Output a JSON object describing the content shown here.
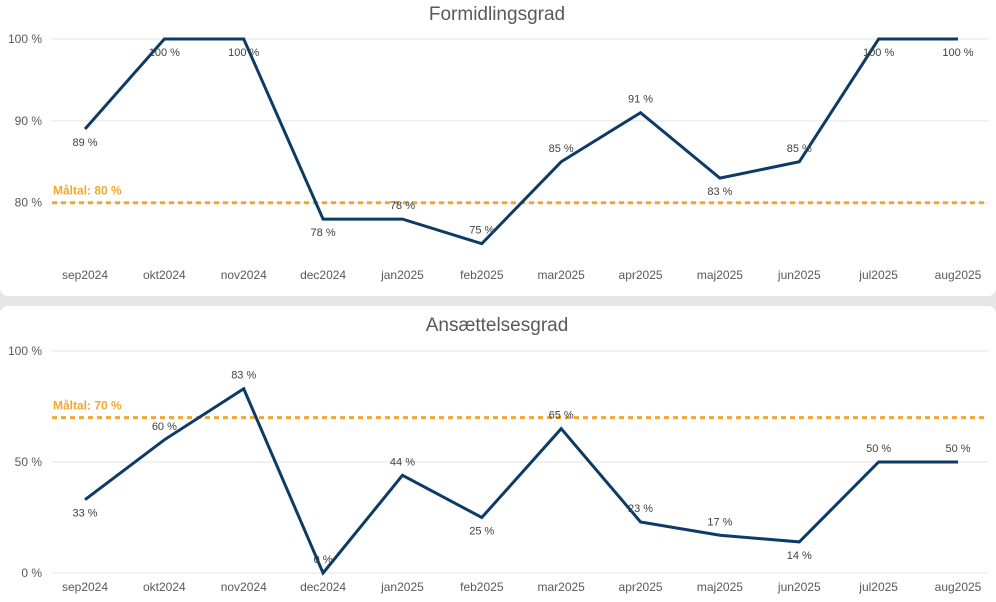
{
  "chart_data": [
    {
      "type": "line",
      "title": "Formidlingsgrad",
      "categories": [
        "sep2024",
        "okt2024",
        "nov2024",
        "dec2024",
        "jan2025",
        "feb2025",
        "mar2025",
        "apr2025",
        "maj2025",
        "jun2025",
        "jul2025",
        "aug2025"
      ],
      "series": [
        {
          "values": [
            89,
            100,
            100,
            78,
            78,
            75,
            85,
            91,
            83,
            85,
            100,
            100
          ]
        }
      ],
      "data_labels": [
        "89 %",
        "100 %",
        "100 %",
        "78 %",
        "78 %",
        "75 %",
        "85 %",
        "91 %",
        "83 %",
        "85 %",
        "100 %",
        "100 %"
      ],
      "label_position": [
        "below",
        "below",
        "below",
        "below",
        "above",
        "above",
        "above",
        "above",
        "below",
        "above",
        "below",
        "below"
      ],
      "yticks": [
        80,
        90,
        100
      ],
      "ytick_labels": [
        "80 %",
        "90 %",
        "100 %"
      ],
      "ylim": [
        73,
        100
      ],
      "target": {
        "value": 80,
        "label": "Måltal: 80 %"
      },
      "grid": true,
      "colors": {
        "series": "#0d3b66",
        "target": "#f0a830"
      }
    },
    {
      "type": "line",
      "title": "Ansættelsesgrad",
      "categories": [
        "sep2024",
        "okt2024",
        "nov2024",
        "dec2024",
        "jan2025",
        "feb2025",
        "mar2025",
        "apr2025",
        "maj2025",
        "jun2025",
        "jul2025",
        "aug2025"
      ],
      "series": [
        {
          "values": [
            33,
            60,
            83,
            0,
            44,
            25,
            65,
            23,
            17,
            14,
            50,
            50
          ]
        }
      ],
      "data_labels": [
        "33 %",
        "60 %",
        "83 %",
        "0 %",
        "44 %",
        "25 %",
        "65 %",
        "23 %",
        "17 %",
        "14 %",
        "50 %",
        "50 %"
      ],
      "label_position": [
        "below",
        "above",
        "above",
        "above",
        "above",
        "below",
        "above",
        "above",
        "above",
        "below",
        "above",
        "above"
      ],
      "yticks": [
        0,
        50,
        100
      ],
      "ytick_labels": [
        "0 %",
        "50 %",
        "100 %"
      ],
      "ylim": [
        0,
        100
      ],
      "target": {
        "value": 70,
        "label": "Måltal: 70 %"
      },
      "grid": true,
      "colors": {
        "series": "#0d3b66",
        "target": "#f0a830"
      }
    }
  ]
}
